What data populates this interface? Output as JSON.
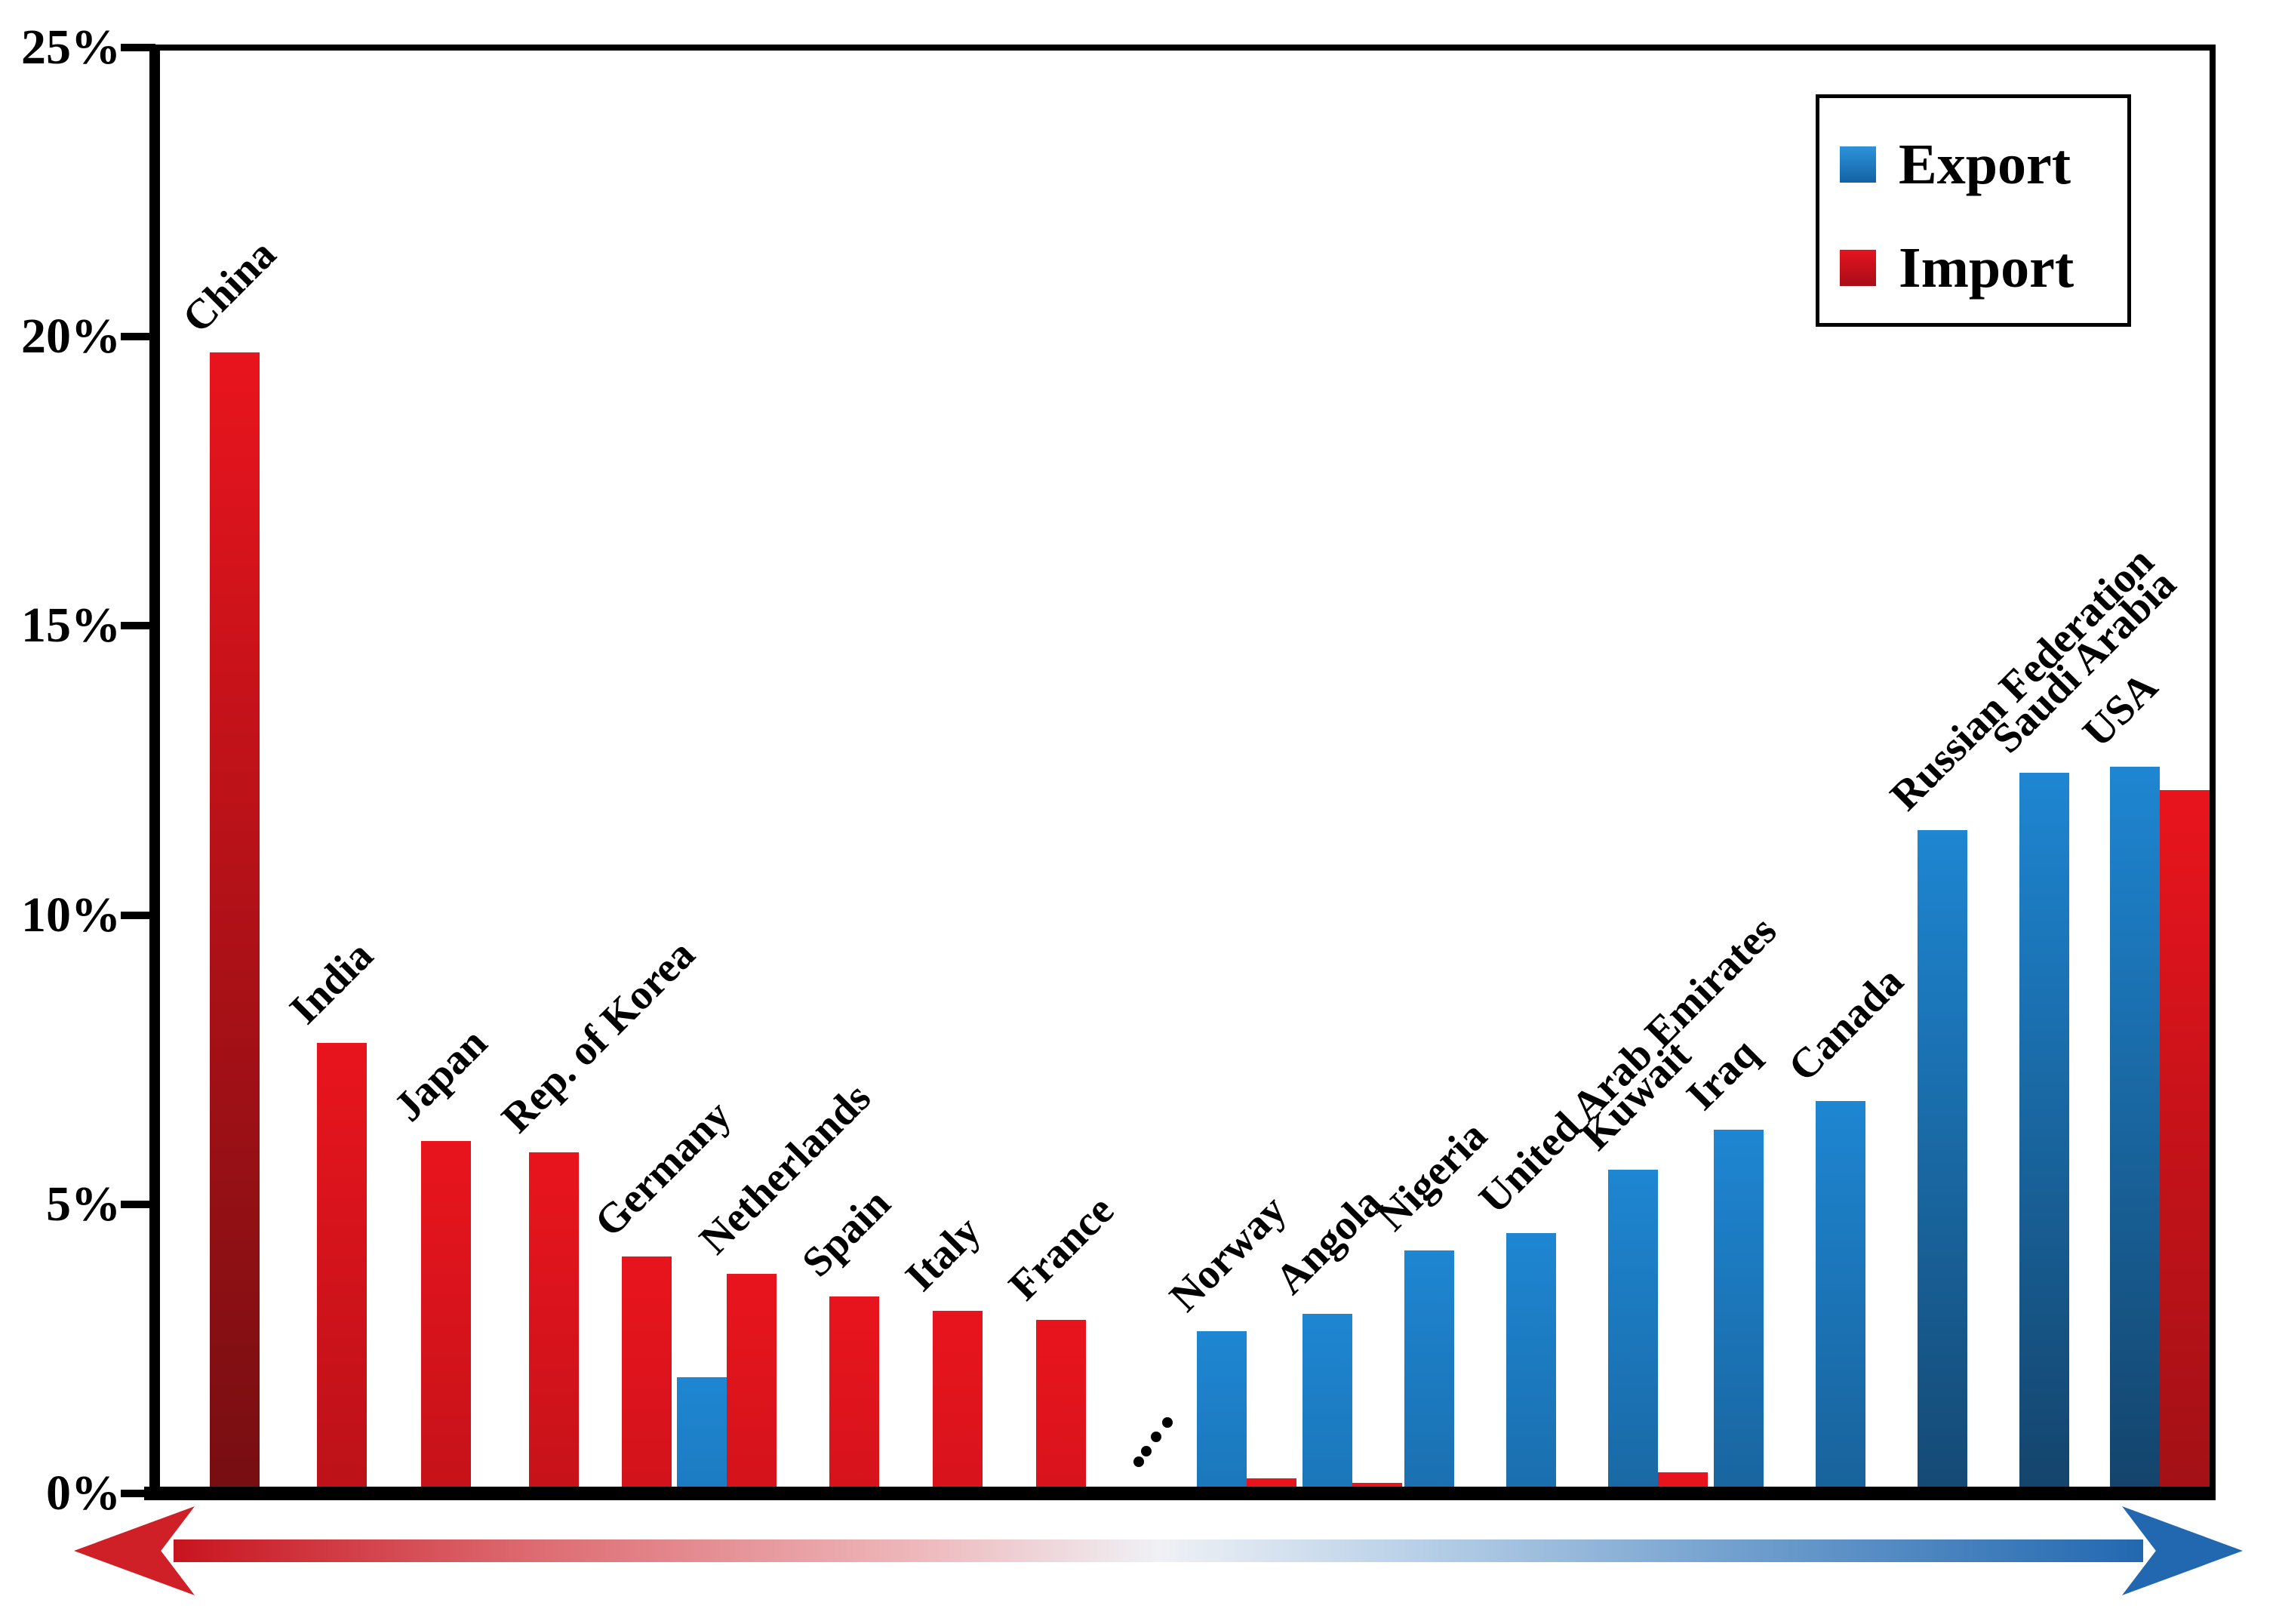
{
  "chart_data": {
    "type": "bar",
    "title": "",
    "xlabel": "",
    "ylabel": "",
    "ylim": [
      0,
      25
    ],
    "grid": false,
    "yticks": [
      "0%",
      "5%",
      "10%",
      "15%",
      "20%",
      "25%"
    ],
    "legend_position": "top-right",
    "legend": [
      {
        "label": "Export",
        "color": "#1b77c4"
      },
      {
        "label": "Import",
        "color": "#cf0e1d"
      }
    ],
    "ellipsis": "....",
    "series": [
      {
        "name": "Export",
        "color": "#1b77c4"
      },
      {
        "name": "Import",
        "color": "#cf0e1d"
      }
    ],
    "countries": [
      {
        "name": "China",
        "export": 0,
        "import": 19.7
      },
      {
        "name": "India",
        "export": 0,
        "import": 7.7
      },
      {
        "name": "Japan",
        "export": 0,
        "import": 6.0
      },
      {
        "name": "Rep. of Korea",
        "export": 0,
        "import": 5.8
      },
      {
        "name": "Germany",
        "export": 0,
        "import": 4.0
      },
      {
        "name": "Netherlands",
        "export": 1.9,
        "import": 3.7
      },
      {
        "name": "Spain",
        "export": 0,
        "import": 3.3
      },
      {
        "name": "Italy",
        "export": 0,
        "import": 3.05
      },
      {
        "name": "France",
        "export": 0,
        "import": 2.9
      },
      {
        "name": "Norway",
        "export": 2.7,
        "import": 0.15
      },
      {
        "name": "Angola",
        "export": 3.0,
        "import": 0.07
      },
      {
        "name": "Nigeria",
        "export": 4.1,
        "import": 0
      },
      {
        "name": "United Arab Emirates",
        "export": 4.4,
        "import": 0
      },
      {
        "name": "Kuwait",
        "export": 5.5,
        "import": 0.25
      },
      {
        "name": "Iraq",
        "export": 6.2,
        "import": 0
      },
      {
        "name": "Canada",
        "export": 6.7,
        "import": 0
      },
      {
        "name": "Russian Federation",
        "export": 11.4,
        "import": 0
      },
      {
        "name": "Saudi Arabia",
        "export": 12.4,
        "import": 0
      },
      {
        "name": "USA",
        "export": 12.5,
        "import": 12.1
      }
    ],
    "axis_arrow": {
      "left_color": "#cf2027",
      "right_color": "#2268b0"
    }
  }
}
